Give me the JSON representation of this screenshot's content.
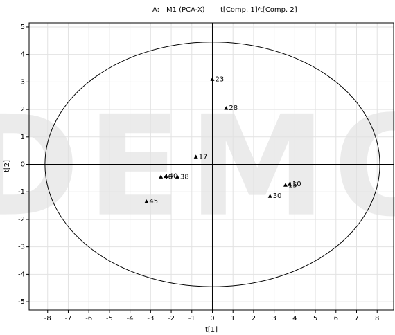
{
  "chart_data": {
    "type": "scatter",
    "title_prefix": "A:",
    "title": "M1 (PCA-X)",
    "subtitle": "t[Comp. 1]/t[Comp. 2]",
    "xlabel": "t[1]",
    "ylabel": "t[2]",
    "watermark": "DEMO",
    "xlim": [
      -8.9,
      8.8
    ],
    "ylim": [
      -5.3,
      5.15
    ],
    "xticks": [
      -8,
      -7,
      -6,
      -5,
      -4,
      -3,
      -2,
      -1,
      0,
      1,
      2,
      3,
      4,
      5,
      6,
      7,
      8
    ],
    "yticks": [
      -5,
      -4,
      -3,
      -2,
      -1,
      0,
      1,
      2,
      3,
      4,
      5
    ],
    "grid": true,
    "color": "#000000",
    "ellipse": {
      "rx": 8.13,
      "ry": 4.45
    },
    "labels": [
      "23",
      "28",
      "17",
      "38",
      "46",
      "40",
      "45",
      "30",
      "15",
      "10"
    ],
    "x": [
      0.0,
      0.67,
      -0.8,
      -1.7,
      -2.5,
      -2.25,
      -3.2,
      2.8,
      3.55,
      3.75
    ],
    "y": [
      3.1,
      2.05,
      0.28,
      -0.45,
      -0.45,
      -0.43,
      -1.35,
      -1.15,
      -0.75,
      -0.72
    ]
  }
}
